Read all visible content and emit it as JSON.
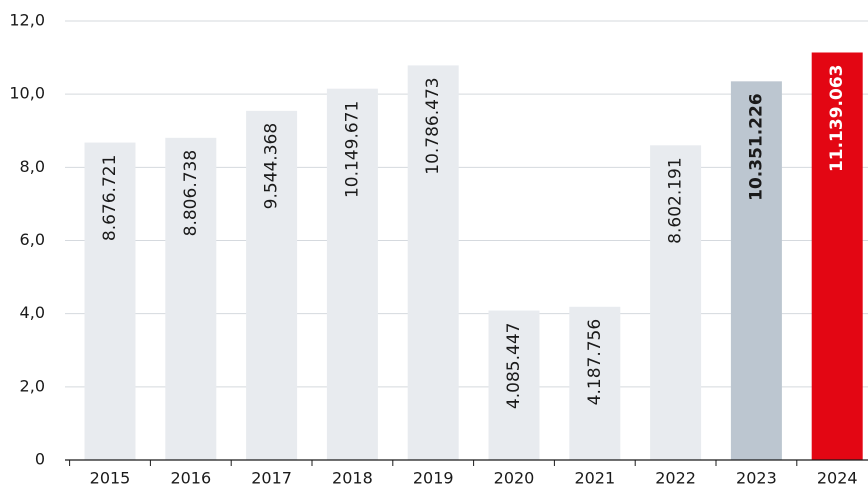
{
  "chart_data": {
    "type": "bar",
    "categories": [
      "2015",
      "2016",
      "2017",
      "2018",
      "2019",
      "2020",
      "2021",
      "2022",
      "2023",
      "2024"
    ],
    "values": [
      8.676721,
      8.806738,
      9.544368,
      10.149671,
      10.786473,
      4.085447,
      4.187756,
      8.602191,
      10.351226,
      11.139063
    ],
    "value_labels": [
      "8.676.721",
      "8.806.738",
      "9.544.368",
      "10.149.671",
      "10.786.473",
      "4.085.447",
      "4.187.756",
      "8.602.191",
      "10.351.226",
      "11.139.063"
    ],
    "colors": [
      "#e8ebef",
      "#e8ebef",
      "#e8ebef",
      "#e8ebef",
      "#e8ebef",
      "#e8ebef",
      "#e8ebef",
      "#e8ebef",
      "#bcc6d0",
      "#e30613"
    ],
    "ylim": [
      0,
      12
    ],
    "yticks": [
      0,
      {
        "value": 2,
        "label": "2,0"
      },
      {
        "value": 4,
        "label": "4,0"
      },
      {
        "value": 6,
        "label": "6,0"
      },
      {
        "value": 8,
        "label": "8,0"
      },
      {
        "value": 10,
        "label": "10,0"
      },
      {
        "value": 12,
        "label": "12,0"
      }
    ],
    "grid": true
  }
}
